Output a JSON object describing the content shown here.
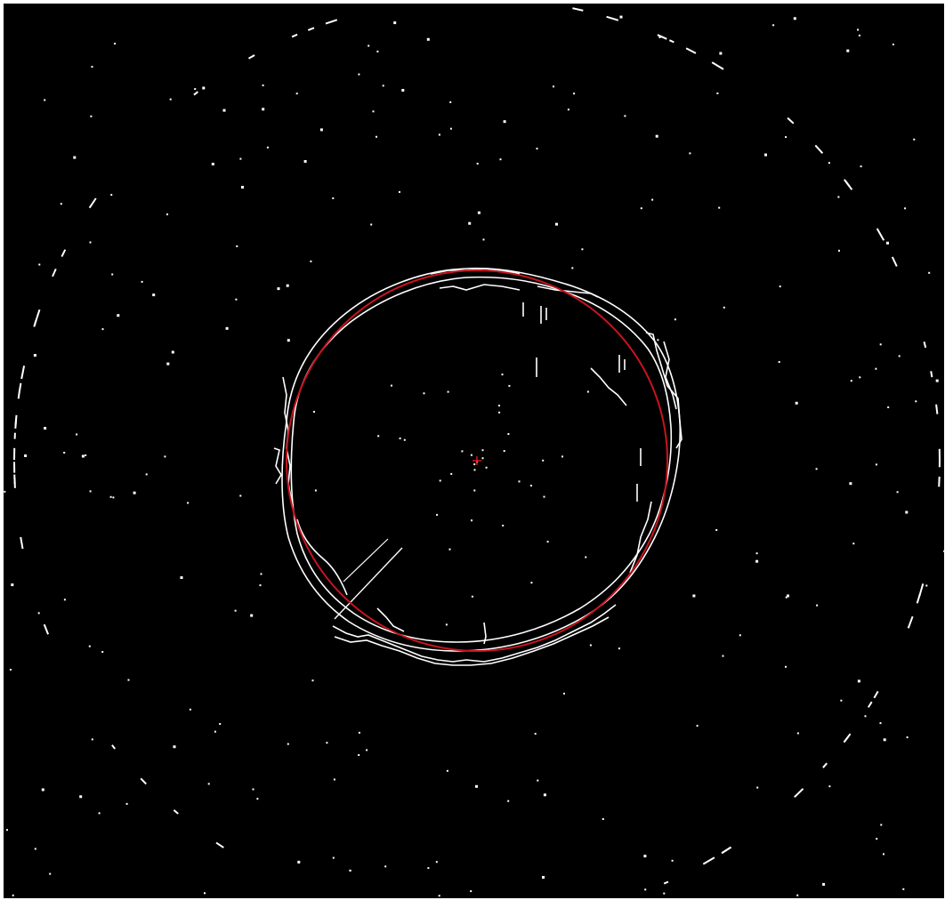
{
  "image": {
    "description_colors": {
      "background": "#000000",
      "edges": "#ffffff",
      "fitted_circle": "#c8141e",
      "center_marker": "#e01818"
    }
  }
}
